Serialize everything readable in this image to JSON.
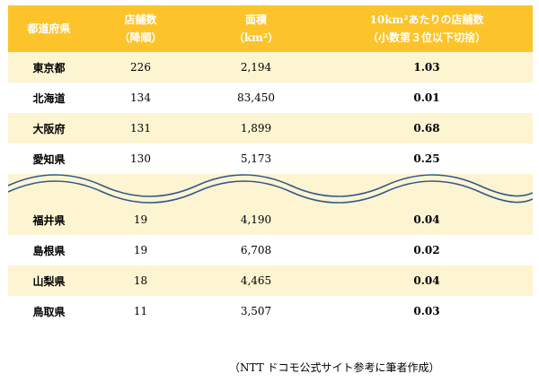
{
  "header": {
    "col1": "都道府県",
    "col2_line1": "店舗数",
    "col2_line2": "（降順）",
    "col3_line1": "面積",
    "col3_line2": "（km²）",
    "col4_line1": "10km²あたりの店舗数",
    "col4_line2": "（小数第３位以下切捨）"
  },
  "top_rows": [
    {
      "pref": "東京都",
      "stores": "226",
      "area": "2,194",
      "per10": "1.03"
    },
    {
      "pref": "北海道",
      "stores": "134",
      "area": "83,450",
      "per10": "0.01"
    },
    {
      "pref": "大阪府",
      "stores": "131",
      "area": "1,899",
      "per10": "0.68"
    },
    {
      "pref": "愛知県",
      "stores": "130",
      "area": "5,173",
      "per10": "0.25"
    }
  ],
  "bottom_rows": [
    {
      "pref": "福井県",
      "stores": "19",
      "area": "4,190",
      "per10": "0.04"
    },
    {
      "pref": "島根県",
      "stores": "19",
      "area": "6,708",
      "per10": "0.02"
    },
    {
      "pref": "山梨県",
      "stores": "18",
      "area": "4,465",
      "per10": "0.04"
    },
    {
      "pref": "鳥取県",
      "stores": "11",
      "area": "3,507",
      "per10": "0.03"
    }
  ],
  "source": "（NTT ドコモ公式サイト参考に筆者作成）",
  "colors": {
    "header_bg": "#fdc32a",
    "stripe_bg": "#fdf4d2",
    "wave": "#2f5a8a"
  }
}
